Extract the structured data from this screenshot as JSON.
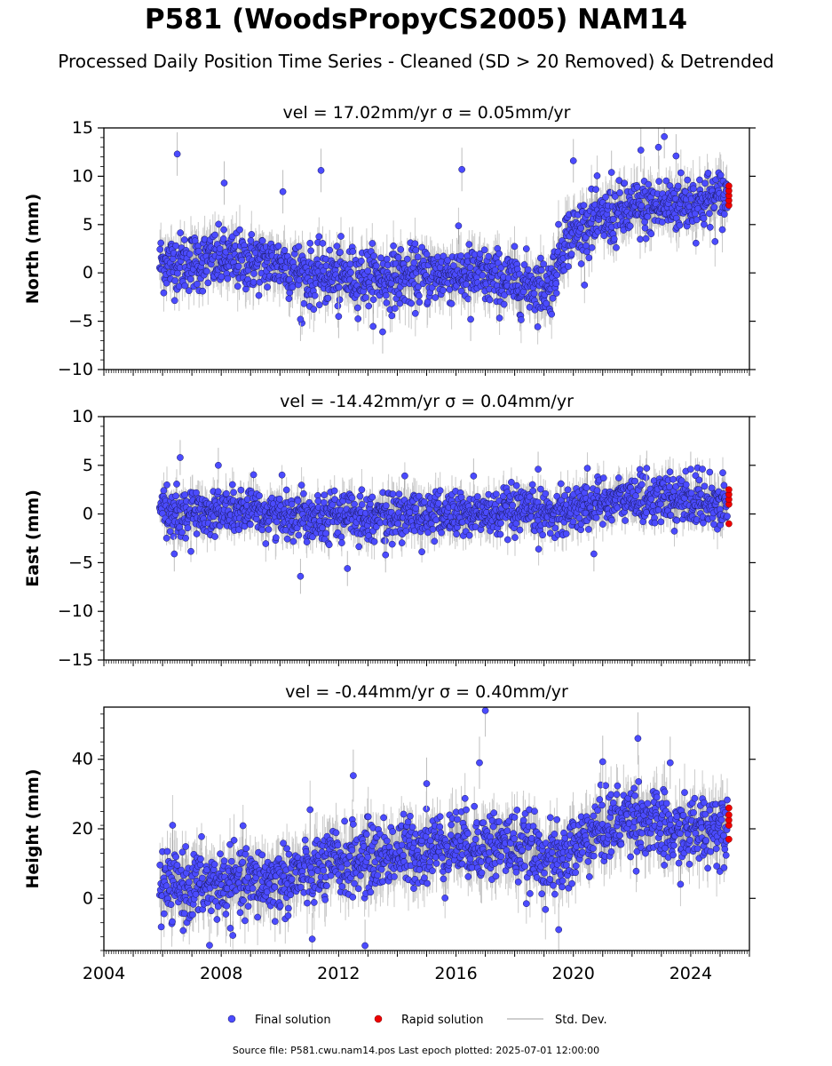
{
  "chart_data": {
    "type": "scatter",
    "title": "P581 (WoodsPropyCS2005) NAM14",
    "subtitle": "Processed Daily Position Time Series - Cleaned (SD > 20 Removed) & Detrended",
    "xlim": [
      2004,
      2026
    ],
    "xticks": [
      2004,
      2008,
      2012,
      2016,
      2020,
      2024
    ],
    "data_start": 2005.9,
    "data_end": 2025.3,
    "rapid_start": 2025.25,
    "panels": [
      {
        "name": "north",
        "ylabel": "North (mm)",
        "annotation": "vel = 17.02mm/yr   σ = 0.05mm/yr",
        "ylim": [
          -10,
          15
        ],
        "yticks": [
          -10,
          -5,
          0,
          5,
          10,
          15
        ],
        "yticklabels": [
          "−10",
          "−5",
          "0",
          "5",
          "10",
          "15"
        ],
        "trend": [
          [
            2005.9,
            1.0
          ],
          [
            2008.0,
            1.3
          ],
          [
            2010.0,
            1.0
          ],
          [
            2011.0,
            -0.3
          ],
          [
            2014.0,
            -0.5
          ],
          [
            2016.0,
            0.0
          ],
          [
            2019.2,
            -1.5
          ],
          [
            2019.7,
            3.5
          ],
          [
            2020.5,
            5.0
          ],
          [
            2022.0,
            6.5
          ],
          [
            2025.3,
            7.8
          ]
        ],
        "scatter_sd": 1.5,
        "outliers": [
          [
            2006.5,
            12.3
          ],
          [
            2008.1,
            9.3
          ],
          [
            2010.1,
            8.4
          ],
          [
            2011.4,
            10.6
          ],
          [
            2016.2,
            10.7
          ],
          [
            2020.0,
            11.6
          ],
          [
            2021.3,
            10.4
          ],
          [
            2022.3,
            12.7
          ],
          [
            2022.9,
            13.0
          ],
          [
            2023.1,
            14.1
          ],
          [
            2023.5,
            12.1
          ],
          [
            2013.5,
            -6.1
          ],
          [
            2010.7,
            -4.8
          ],
          [
            2016.5,
            -4.8
          ],
          [
            2012.0,
            -4.5
          ]
        ],
        "rapid": [
          7.0,
          7.5,
          8.0,
          8.5,
          9.0
        ]
      },
      {
        "name": "east",
        "ylabel": "East (mm)",
        "annotation": "vel = -14.42mm/yr   σ = 0.04mm/yr",
        "ylim": [
          -15,
          10
        ],
        "yticks": [
          -15,
          -10,
          -5,
          0,
          5,
          10
        ],
        "yticklabels": [
          "−15",
          "−10",
          "−5",
          "0",
          "5",
          "10"
        ],
        "trend": [
          [
            2005.9,
            0.0
          ],
          [
            2008.0,
            0.3
          ],
          [
            2010.0,
            0.0
          ],
          [
            2014.0,
            -0.2
          ],
          [
            2016.0,
            0.0
          ],
          [
            2019.0,
            0.0
          ],
          [
            2020.0,
            0.6
          ],
          [
            2021.0,
            1.3
          ],
          [
            2022.0,
            1.6
          ],
          [
            2025.3,
            1.2
          ]
        ],
        "scatter_sd": 1.2,
        "outliers": [
          [
            2006.6,
            5.8
          ],
          [
            2007.9,
            5.0
          ],
          [
            2016.6,
            3.9
          ],
          [
            2018.8,
            4.6
          ],
          [
            2022.5,
            4.7
          ],
          [
            2024.0,
            4.6
          ],
          [
            2010.7,
            -6.4
          ],
          [
            2012.3,
            -5.6
          ],
          [
            2020.7,
            -4.1
          ],
          [
            2013.6,
            -4.2
          ],
          [
            2006.4,
            -4.1
          ]
        ],
        "rapid": [
          -1.0,
          1.0,
          1.5,
          2.0,
          2.5
        ]
      },
      {
        "name": "height",
        "ylabel": "Height (mm)",
        "annotation": "vel = -0.44mm/yr   σ = 0.40mm/yr",
        "ylim": [
          -15,
          55
        ],
        "yticks": [
          0,
          20,
          40
        ],
        "yticklabels": [
          "0",
          "20",
          "40"
        ],
        "trend": [
          [
            2005.9,
            3.0
          ],
          [
            2008.0,
            4.0
          ],
          [
            2010.0,
            5.0
          ],
          [
            2012.0,
            10.0
          ],
          [
            2014.0,
            13.0
          ],
          [
            2016.0,
            16.0
          ],
          [
            2018.0,
            15.0
          ],
          [
            2019.5,
            10.0
          ],
          [
            2020.5,
            18.0
          ],
          [
            2022.0,
            24.0
          ],
          [
            2023.5,
            18.0
          ],
          [
            2025.3,
            22.0
          ]
        ],
        "scatter_sd": 5.0,
        "outliers": [
          [
            2012.5,
            35.3
          ],
          [
            2016.8,
            39.0
          ],
          [
            2017.0,
            54.0
          ],
          [
            2022.2,
            46.0
          ],
          [
            2021.0,
            39.3
          ],
          [
            2023.3,
            39.0
          ],
          [
            2015.0,
            33.0
          ],
          [
            2012.9,
            -13.6
          ],
          [
            2019.5,
            -9.0
          ],
          [
            2007.6,
            -13.5
          ],
          [
            2011.1,
            -11.7
          ]
        ],
        "rapid": [
          17.0,
          21.0,
          22.5,
          24.0,
          26.0
        ]
      }
    ],
    "legend": [
      "Final solution",
      "Rapid solution",
      "Std. Dev."
    ]
  },
  "footer": "Source file: P581.cwu.nam14.pos  Last epoch plotted: 2025-07-01 12:00:00",
  "colors": {
    "final": "#4b4bff",
    "rapid": "#ee0000",
    "sd": "#bdbdbd",
    "edge": "#1a1a5e"
  }
}
